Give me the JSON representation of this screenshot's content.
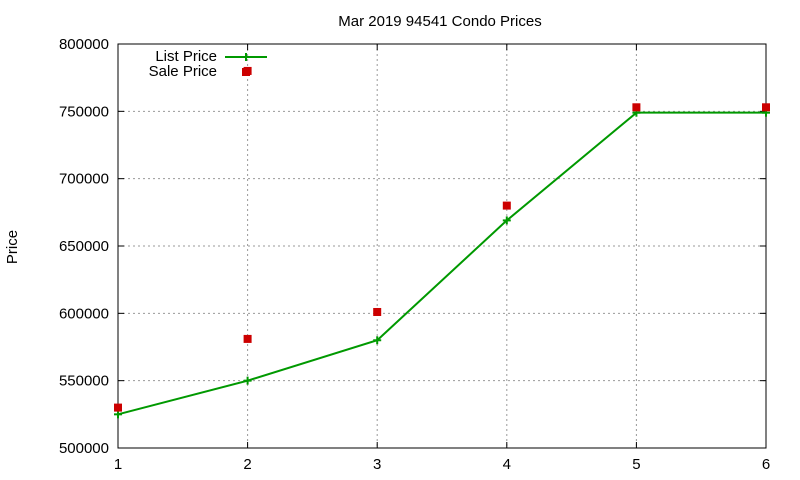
{
  "chart_data": {
    "type": "line",
    "title": "Mar 2019 94541 Condo Prices",
    "xlabel": "",
    "ylabel": "Price",
    "xlim": [
      1,
      6
    ],
    "ylim": [
      500000,
      800000
    ],
    "x_ticks": [
      "1",
      "2",
      "3",
      "4",
      "5",
      "6"
    ],
    "y_ticks": [
      "500000",
      "550000",
      "600000",
      "650000",
      "700000",
      "750000",
      "800000"
    ],
    "grid": true,
    "legend_position": "top-left",
    "series": [
      {
        "name": "List Price",
        "style": "line with plus markers",
        "color": "#009900",
        "x": [
          1,
          2,
          3,
          4,
          5,
          6
        ],
        "y": [
          525000,
          550000,
          580000,
          669000,
          749000,
          749000
        ]
      },
      {
        "name": "Sale Price",
        "style": "square markers",
        "color": "#cc0000",
        "x": [
          1,
          2,
          2,
          3,
          4,
          5,
          6
        ],
        "y": [
          530000,
          581000,
          780000,
          601000,
          680000,
          753000,
          753000
        ]
      }
    ]
  }
}
